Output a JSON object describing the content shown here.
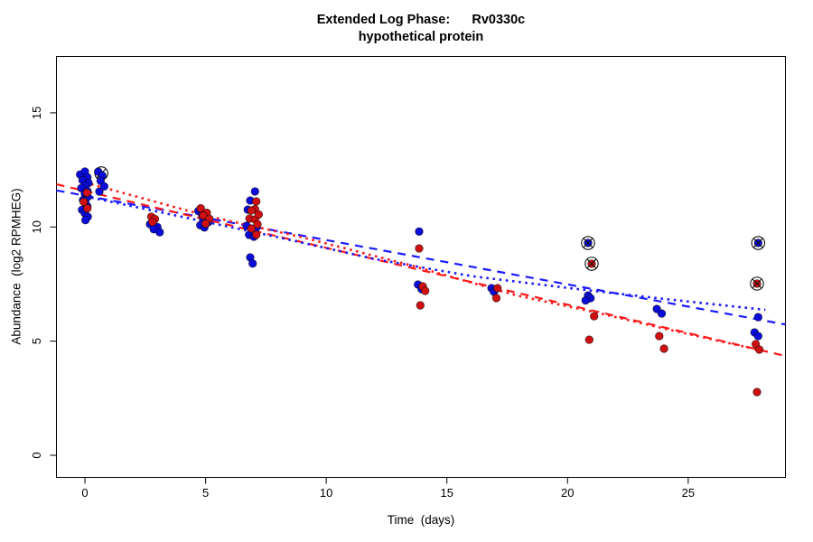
{
  "chart_data": {
    "type": "scatter",
    "title": "Extended Log Phase:      Rv0330c",
    "subtitle": "hypothetical protein",
    "xlabel": "Time  (days)",
    "ylabel": "Abundance  (log2 RPMHEG)",
    "xlim": [
      -1.18,
      29.03
    ],
    "ylim": [
      -0.97,
      17.47
    ],
    "xticks": [
      "0",
      "5",
      "10",
      "15",
      "20",
      "25"
    ],
    "xtick_values": [
      0,
      5,
      10,
      15,
      20,
      25
    ],
    "yticks": [
      "0",
      "5",
      "10",
      "15"
    ],
    "ytick_values": [
      0,
      5,
      10,
      15
    ],
    "grid": false,
    "legend": "none",
    "colors": {
      "blue_points": "#0b0bdb",
      "red_points": "#d01010",
      "blue_line": "#1a1aff",
      "red_line": "#ff1a1a",
      "flag_marker": "#111111"
    },
    "series": [
      {
        "name": "blue",
        "color": "#0b0bdb",
        "points": [
          [
            -0.2,
            12.3
          ],
          [
            0.0,
            12.43
          ],
          [
            0.1,
            12.18
          ],
          [
            -0.1,
            12.05
          ],
          [
            0.15,
            11.93
          ],
          [
            0.0,
            11.82
          ],
          [
            -0.15,
            11.7
          ],
          [
            0.1,
            11.58
          ],
          [
            0.0,
            11.45
          ],
          [
            0.12,
            11.32
          ],
          [
            -0.08,
            11.18
          ],
          [
            0.02,
            11.05
          ],
          [
            0.1,
            10.9
          ],
          [
            -0.12,
            10.75
          ],
          [
            0.0,
            10.6
          ],
          [
            0.12,
            10.45
          ],
          [
            0.02,
            10.3
          ],
          [
            0.55,
            12.42
          ],
          [
            0.72,
            12.25
          ],
          [
            0.65,
            12.02
          ],
          [
            0.8,
            11.78
          ],
          [
            0.6,
            11.55
          ],
          [
            2.7,
            10.12
          ],
          [
            3.0,
            10.0
          ],
          [
            2.85,
            9.9
          ],
          [
            3.1,
            9.77
          ],
          [
            4.7,
            10.7
          ],
          [
            4.85,
            10.55
          ],
          [
            5.0,
            10.46
          ],
          [
            4.9,
            10.33
          ],
          [
            5.1,
            10.2
          ],
          [
            4.78,
            10.08
          ],
          [
            4.95,
            9.98
          ],
          [
            7.05,
            11.56
          ],
          [
            6.85,
            11.16
          ],
          [
            6.75,
            10.76
          ],
          [
            6.7,
            10.05
          ],
          [
            7.1,
            9.97
          ],
          [
            6.8,
            9.66
          ],
          [
            7.0,
            9.57
          ],
          [
            6.85,
            8.67
          ],
          [
            6.95,
            8.4
          ],
          [
            13.85,
            9.8
          ],
          [
            13.8,
            7.48
          ],
          [
            13.95,
            7.28
          ],
          [
            16.85,
            7.32
          ],
          [
            16.95,
            7.16
          ],
          [
            20.85,
            7.0
          ],
          [
            20.95,
            6.88
          ],
          [
            20.75,
            6.78
          ],
          [
            23.7,
            6.41
          ],
          [
            23.9,
            6.21
          ],
          [
            27.9,
            6.05
          ],
          [
            27.75,
            5.38
          ],
          [
            27.9,
            5.22
          ]
        ]
      },
      {
        "name": "red",
        "color": "#d01010",
        "points": [
          [
            0.08,
            11.5
          ],
          [
            -0.05,
            11.1
          ],
          [
            0.1,
            10.82
          ],
          [
            2.75,
            10.45
          ],
          [
            2.9,
            10.35
          ],
          [
            2.8,
            10.22
          ],
          [
            4.8,
            10.82
          ],
          [
            5.05,
            10.62
          ],
          [
            4.9,
            10.5
          ],
          [
            5.15,
            10.36
          ],
          [
            5.0,
            10.15
          ],
          [
            7.1,
            11.12
          ],
          [
            7.05,
            10.78
          ],
          [
            6.9,
            10.72
          ],
          [
            6.82,
            10.37
          ],
          [
            7.05,
            10.33
          ],
          [
            7.2,
            10.55
          ],
          [
            7.15,
            10.12
          ],
          [
            6.9,
            9.93
          ],
          [
            7.1,
            9.66
          ],
          [
            13.85,
            9.06
          ],
          [
            14.0,
            7.4
          ],
          [
            14.1,
            7.2
          ],
          [
            13.9,
            6.57
          ],
          [
            17.1,
            7.32
          ],
          [
            17.05,
            6.89
          ],
          [
            21.1,
            6.09
          ],
          [
            20.9,
            5.06
          ],
          [
            23.8,
            5.22
          ],
          [
            24.0,
            4.67
          ],
          [
            27.8,
            4.87
          ],
          [
            27.95,
            4.63
          ],
          [
            27.85,
            2.77
          ]
        ]
      }
    ],
    "flagged_points": [
      {
        "series": "blue",
        "x": 0.68,
        "y": 12.35,
        "hidden_behind_cluster": true
      },
      {
        "series": "blue",
        "x": 20.85,
        "y": 9.3
      },
      {
        "series": "red",
        "x": 21.0,
        "y": 8.39
      },
      {
        "series": "blue",
        "x": 27.9,
        "y": 9.3
      },
      {
        "series": "red",
        "x": 27.85,
        "y": 7.52
      }
    ],
    "lines": [
      {
        "name": "blue-dashed-fit",
        "color": "#1a1aff",
        "style": "dashed",
        "points": [
          [
            -1.18,
            11.6
          ],
          [
            29.03,
            5.73
          ]
        ]
      },
      {
        "name": "red-dashed-fit",
        "color": "#ff1a1a",
        "style": "dashed",
        "points": [
          [
            -1.18,
            11.87
          ],
          [
            29.03,
            4.35
          ]
        ]
      },
      {
        "name": "blue-dotted-fit",
        "color": "#1a1aff",
        "style": "dotted",
        "points": [
          [
            0,
            11.35
          ],
          [
            4,
            10.45
          ],
          [
            8,
            9.55
          ],
          [
            12,
            8.6
          ],
          [
            16,
            7.85
          ],
          [
            20,
            7.33
          ],
          [
            24,
            6.85
          ],
          [
            28.2,
            6.37
          ]
        ]
      },
      {
        "name": "red-dotted-fit",
        "color": "#ff1a1a",
        "style": "dotted",
        "points": [
          [
            0,
            11.95
          ],
          [
            5,
            10.5
          ],
          [
            9,
            9.55
          ],
          [
            13.4,
            8.35
          ],
          [
            17.9,
            7.0
          ],
          [
            21,
            6.3
          ],
          [
            24,
            5.55
          ],
          [
            28.2,
            4.55
          ]
        ]
      }
    ]
  }
}
